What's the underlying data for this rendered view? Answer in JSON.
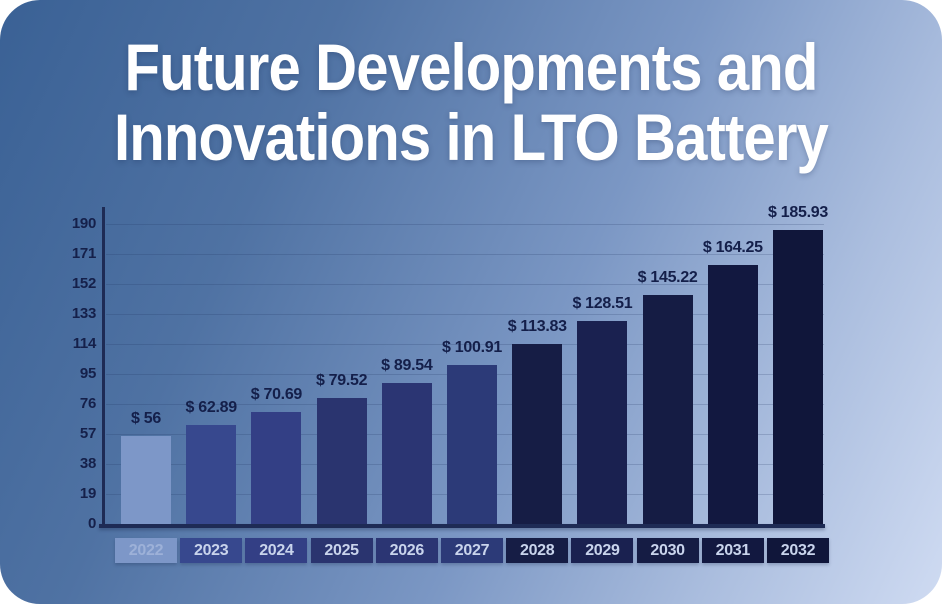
{
  "title": {
    "line1": "Future Developments and",
    "line2": "Innovations in LTO Battery"
  },
  "chart_data": {
    "type": "bar",
    "title": "Future Developments and Innovations in LTO Battery",
    "categories": [
      "2022",
      "2023",
      "2024",
      "2025",
      "2026",
      "2027",
      "2028",
      "2029",
      "2030",
      "2031",
      "2032"
    ],
    "values": [
      56,
      62.89,
      70.69,
      79.52,
      89.54,
      100.91,
      113.83,
      128.51,
      145.22,
      164.25,
      185.93
    ],
    "value_labels": [
      "$ 56",
      "$ 62.89",
      "$ 70.69",
      "$ 79.52",
      "$ 89.54",
      "$ 100.91",
      "$ 113.83",
      "$ 128.51",
      "$ 145.22",
      "$ 164.25",
      "$ 185.93"
    ],
    "y_ticks": [
      0,
      19,
      38,
      57,
      76,
      95,
      114,
      133,
      152,
      171,
      190
    ],
    "ylim": [
      0,
      190
    ],
    "xlabel": "",
    "ylabel": "",
    "grid": true,
    "legend_position": "none",
    "bar_colors": [
      "#7d97c8",
      "#37488e",
      "#333f85",
      "#2a346f",
      "#2b3573",
      "#2c3a78",
      "#161d45",
      "#1a2150",
      "#151c44",
      "#121840",
      "#10163a"
    ],
    "category_text_colors": [
      "#9db1d8",
      "#c9d4ec",
      "#c9d4ec",
      "#c9d4ec",
      "#c9d4ec",
      "#c9d4ec",
      "#c9d4ec",
      "#c9d4ec",
      "#c9d4ec",
      "#c9d4ec",
      "#c9d4ec"
    ],
    "axis_color": "#1e2b55",
    "value_label_color": "#141f4a",
    "background_gradient": [
      "#3a6195",
      "#cfdbf2"
    ]
  }
}
